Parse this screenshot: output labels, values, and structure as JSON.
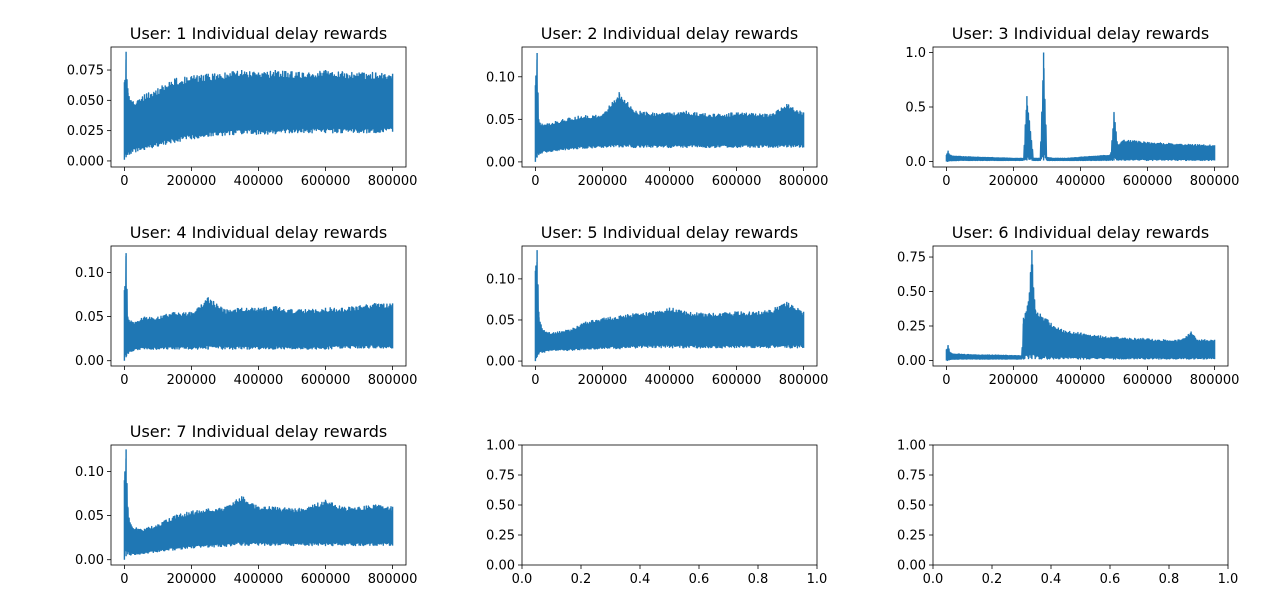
{
  "figure": {
    "line_color": "#1f77b4",
    "background": "#ffffff"
  },
  "chart_data": [
    {
      "type": "line",
      "title": "User: 1 Individual delay rewards",
      "xlim": [
        -40000,
        840000
      ],
      "ylim": [
        -0.005,
        0.094
      ],
      "xticks": [
        0,
        200000,
        400000,
        600000,
        800000
      ],
      "yticks": [
        0.0,
        0.025,
        0.05,
        0.075
      ],
      "yticklabels": [
        "0.000",
        "0.025",
        "0.050",
        "0.075"
      ],
      "series": [
        {
          "x": [
            0,
            5000,
            10000,
            20000,
            40000,
            60000,
            100000,
            150000,
            200000,
            250000,
            300000,
            350000,
            400000,
            450000,
            500000,
            550000,
            600000,
            650000,
            700000,
            750000,
            800000
          ],
          "lower": [
            0.001,
            0.003,
            0.005,
            0.006,
            0.008,
            0.009,
            0.012,
            0.015,
            0.018,
            0.02,
            0.021,
            0.022,
            0.022,
            0.022,
            0.023,
            0.023,
            0.023,
            0.023,
            0.023,
            0.023,
            0.024
          ],
          "upper": [
            0.065,
            0.09,
            0.06,
            0.05,
            0.05,
            0.055,
            0.06,
            0.068,
            0.07,
            0.072,
            0.073,
            0.075,
            0.073,
            0.075,
            0.074,
            0.073,
            0.075,
            0.074,
            0.073,
            0.073,
            0.072
          ]
        }
      ]
    },
    {
      "type": "line",
      "title": "User: 2 Individual delay rewards",
      "xlim": [
        -40000,
        840000
      ],
      "ylim": [
        -0.006,
        0.135
      ],
      "xticks": [
        0,
        200000,
        400000,
        600000,
        800000
      ],
      "yticks": [
        0.0,
        0.05,
        0.1
      ],
      "yticklabels": [
        "0.00",
        "0.05",
        "0.10"
      ],
      "series": [
        {
          "x": [
            0,
            5000,
            10000,
            20000,
            40000,
            60000,
            100000,
            150000,
            200000,
            250000,
            300000,
            350000,
            400000,
            450000,
            500000,
            550000,
            600000,
            650000,
            700000,
            750000,
            800000
          ],
          "lower": [
            0.0,
            0.005,
            0.008,
            0.01,
            0.012,
            0.013,
            0.014,
            0.016,
            0.017,
            0.017,
            0.017,
            0.017,
            0.017,
            0.017,
            0.017,
            0.017,
            0.017,
            0.017,
            0.017,
            0.017,
            0.017
          ],
          "upper": [
            0.09,
            0.128,
            0.05,
            0.045,
            0.045,
            0.048,
            0.052,
            0.055,
            0.055,
            0.082,
            0.06,
            0.058,
            0.058,
            0.06,
            0.057,
            0.056,
            0.058,
            0.057,
            0.056,
            0.068,
            0.058
          ]
        }
      ]
    },
    {
      "type": "line",
      "title": "User: 3 Individual delay rewards",
      "xlim": [
        -40000,
        840000
      ],
      "ylim": [
        -0.05,
        1.05
      ],
      "xticks": [
        0,
        200000,
        400000,
        600000,
        800000
      ],
      "yticks": [
        0.0,
        0.5,
        1.0
      ],
      "yticklabels": [
        "0.0",
        "0.5",
        "1.0"
      ],
      "series": [
        {
          "x": [
            0,
            5000,
            10000,
            20000,
            50000,
            100000,
            150000,
            200000,
            230000,
            240000,
            260000,
            280000,
            290000,
            300000,
            320000,
            360000,
            400000,
            450000,
            490000,
            500000,
            510000,
            530000,
            600000,
            700000,
            800000
          ],
          "lower": [
            0.0,
            0.0,
            0.005,
            0.008,
            0.01,
            0.01,
            0.01,
            0.01,
            0.01,
            0.01,
            0.01,
            0.01,
            0.01,
            0.01,
            0.01,
            0.01,
            0.01,
            0.01,
            0.01,
            0.01,
            0.01,
            0.01,
            0.01,
            0.01,
            0.01
          ],
          "upper": [
            0.06,
            0.1,
            0.06,
            0.05,
            0.045,
            0.04,
            0.035,
            0.03,
            0.03,
            0.6,
            0.03,
            0.03,
            1.0,
            0.04,
            0.03,
            0.03,
            0.04,
            0.05,
            0.06,
            0.45,
            0.16,
            0.2,
            0.18,
            0.16,
            0.15
          ]
        }
      ]
    },
    {
      "type": "line",
      "title": "User: 4 Individual delay rewards",
      "xlim": [
        -40000,
        840000
      ],
      "ylim": [
        -0.006,
        0.13
      ],
      "xticks": [
        0,
        200000,
        400000,
        600000,
        800000
      ],
      "yticks": [
        0.0,
        0.05,
        0.1
      ],
      "yticklabels": [
        "0.00",
        "0.05",
        "0.10"
      ],
      "series": [
        {
          "x": [
            0,
            5000,
            10000,
            20000,
            40000,
            60000,
            100000,
            150000,
            200000,
            250000,
            300000,
            350000,
            400000,
            450000,
            500000,
            550000,
            600000,
            650000,
            700000,
            750000,
            800000
          ],
          "lower": [
            0.0,
            0.004,
            0.008,
            0.01,
            0.012,
            0.013,
            0.013,
            0.013,
            0.013,
            0.013,
            0.013,
            0.013,
            0.013,
            0.013,
            0.013,
            0.013,
            0.013,
            0.014,
            0.014,
            0.014,
            0.014
          ],
          "upper": [
            0.08,
            0.122,
            0.05,
            0.045,
            0.045,
            0.05,
            0.05,
            0.055,
            0.055,
            0.072,
            0.058,
            0.06,
            0.06,
            0.062,
            0.058,
            0.058,
            0.06,
            0.06,
            0.062,
            0.065,
            0.065
          ]
        }
      ]
    },
    {
      "type": "line",
      "title": "User: 5 Individual delay rewards",
      "xlim": [
        -40000,
        840000
      ],
      "ylim": [
        -0.006,
        0.14
      ],
      "xticks": [
        0,
        200000,
        400000,
        600000,
        800000
      ],
      "yticks": [
        0.0,
        0.05,
        0.1
      ],
      "yticklabels": [
        "0.00",
        "0.05",
        "0.10"
      ],
      "series": [
        {
          "x": [
            0,
            5000,
            10000,
            20000,
            40000,
            60000,
            100000,
            150000,
            200000,
            250000,
            300000,
            350000,
            400000,
            450000,
            500000,
            550000,
            600000,
            650000,
            700000,
            750000,
            800000
          ],
          "lower": [
            0.0,
            0.005,
            0.008,
            0.01,
            0.012,
            0.013,
            0.013,
            0.014,
            0.015,
            0.015,
            0.016,
            0.016,
            0.016,
            0.016,
            0.016,
            0.016,
            0.016,
            0.016,
            0.016,
            0.016,
            0.016
          ],
          "upper": [
            0.11,
            0.135,
            0.06,
            0.04,
            0.035,
            0.035,
            0.038,
            0.048,
            0.052,
            0.055,
            0.058,
            0.06,
            0.065,
            0.06,
            0.058,
            0.058,
            0.06,
            0.06,
            0.062,
            0.072,
            0.06
          ]
        }
      ]
    },
    {
      "type": "line",
      "title": "User: 6 Individual delay rewards",
      "xlim": [
        -40000,
        840000
      ],
      "ylim": [
        -0.04,
        0.83
      ],
      "xticks": [
        0,
        200000,
        400000,
        600000,
        800000
      ],
      "yticks": [
        0.0,
        0.25,
        0.5,
        0.75
      ],
      "yticklabels": [
        "0.00",
        "0.25",
        "0.50",
        "0.75"
      ],
      "series": [
        {
          "x": [
            0,
            5000,
            10000,
            20000,
            50000,
            100000,
            150000,
            200000,
            225000,
            230000,
            245000,
            255000,
            265000,
            280000,
            300000,
            320000,
            350000,
            400000,
            450000,
            500000,
            550000,
            600000,
            650000,
            700000,
            730000,
            750000,
            800000
          ],
          "lower": [
            0.0,
            0.0,
            0.005,
            0.008,
            0.01,
            0.01,
            0.01,
            0.01,
            0.01,
            0.01,
            0.01,
            0.01,
            0.01,
            0.01,
            0.01,
            0.01,
            0.01,
            0.01,
            0.01,
            0.01,
            0.01,
            0.01,
            0.01,
            0.01,
            0.01,
            0.01,
            0.01
          ],
          "upper": [
            0.08,
            0.11,
            0.06,
            0.05,
            0.045,
            0.04,
            0.04,
            0.035,
            0.035,
            0.31,
            0.43,
            0.8,
            0.37,
            0.34,
            0.3,
            0.25,
            0.22,
            0.2,
            0.18,
            0.17,
            0.16,
            0.16,
            0.15,
            0.15,
            0.21,
            0.15,
            0.15
          ]
        }
      ]
    },
    {
      "type": "line",
      "title": "User: 7 Individual delay rewards",
      "xlim": [
        -40000,
        840000
      ],
      "ylim": [
        -0.006,
        0.13
      ],
      "xticks": [
        0,
        200000,
        400000,
        600000,
        800000
      ],
      "yticks": [
        0.0,
        0.05,
        0.1
      ],
      "yticklabels": [
        "0.00",
        "0.05",
        "0.10"
      ],
      "series": [
        {
          "x": [
            0,
            5000,
            10000,
            20000,
            40000,
            60000,
            100000,
            150000,
            200000,
            250000,
            300000,
            350000,
            400000,
            450000,
            500000,
            550000,
            600000,
            650000,
            700000,
            750000,
            800000
          ],
          "lower": [
            0.0,
            0.004,
            0.006,
            0.005,
            0.006,
            0.007,
            0.009,
            0.011,
            0.013,
            0.014,
            0.015,
            0.016,
            0.016,
            0.016,
            0.016,
            0.016,
            0.016,
            0.016,
            0.016,
            0.016,
            0.016
          ],
          "upper": [
            0.09,
            0.125,
            0.06,
            0.04,
            0.035,
            0.035,
            0.04,
            0.05,
            0.055,
            0.058,
            0.06,
            0.072,
            0.06,
            0.06,
            0.058,
            0.06,
            0.068,
            0.06,
            0.06,
            0.062,
            0.06
          ]
        }
      ]
    },
    {
      "type": "line",
      "title": "",
      "xlim": [
        0,
        1
      ],
      "ylim": [
        0,
        1
      ],
      "xticks": [
        0,
        0.2,
        0.4,
        0.6,
        0.8,
        1.0
      ],
      "xticklabels": [
        "0.0",
        "0.2",
        "0.4",
        "0.6",
        "0.8",
        "1.0"
      ],
      "yticks": [
        0,
        0.25,
        0.5,
        0.75,
        1.0
      ],
      "yticklabels": [
        "0.00",
        "0.25",
        "0.50",
        "0.75",
        "1.00"
      ],
      "series": []
    },
    {
      "type": "line",
      "title": "",
      "xlim": [
        0,
        1
      ],
      "ylim": [
        0,
        1
      ],
      "xticks": [
        0,
        0.2,
        0.4,
        0.6,
        0.8,
        1.0
      ],
      "xticklabels": [
        "0.0",
        "0.2",
        "0.4",
        "0.6",
        "0.8",
        "1.0"
      ],
      "yticks": [
        0,
        0.25,
        0.5,
        0.75,
        1.0
      ],
      "yticklabels": [
        "0.00",
        "0.25",
        "0.50",
        "0.75",
        "1.00"
      ],
      "series": []
    }
  ]
}
